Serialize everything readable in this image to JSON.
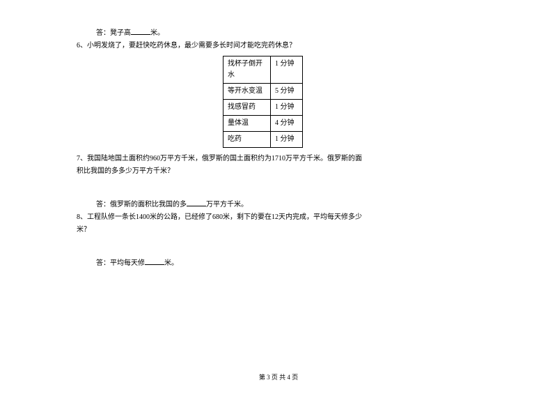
{
  "q5": {
    "answer_prefix": "答：凳子高",
    "answer_suffix": "米。"
  },
  "q6": {
    "number": "6、",
    "text": "小明发烧了，要赶快吃药休息，最少需要多长时间才能吃完药休息？",
    "table": {
      "rows": [
        {
          "task": "找杯子倒开水",
          "time": "1 分钟"
        },
        {
          "task": "等开水变温",
          "time": "5 分钟"
        },
        {
          "task": "找感冒药",
          "time": "1 分钟"
        },
        {
          "task": "量体温",
          "time": "4 分钟"
        },
        {
          "task": "吃药",
          "time": "1 分钟"
        }
      ]
    }
  },
  "q7": {
    "number": "7、",
    "text_a": "我国陆地国土面积约960万平方千米，俄罗斯的国土面积约为1710万平方千米。俄罗斯的面",
    "text_b": "积比我国的多多少万平方千米？",
    "answer_prefix": "答：俄罗斯的面积比我国的多",
    "answer_suffix": "万平方千米。"
  },
  "q8": {
    "number": "8、",
    "text_a": "工程队修一条长1400米的公路，已经修了680米，剩下的要在12天内完成，平均每天修多少",
    "text_b": "米？",
    "answer_prefix": "答：平均每天修",
    "answer_suffix": "米。"
  },
  "footer": {
    "text": "第 3 页 共 4 页"
  }
}
